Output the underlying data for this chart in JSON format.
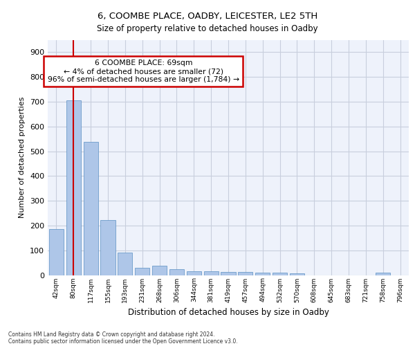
{
  "title_line1": "6, COOMBE PLACE, OADBY, LEICESTER, LE2 5TH",
  "title_line2": "Size of property relative to detached houses in Oadby",
  "xlabel": "Distribution of detached houses by size in Oadby",
  "ylabel": "Number of detached properties",
  "categories": [
    "42sqm",
    "80sqm",
    "117sqm",
    "155sqm",
    "193sqm",
    "231sqm",
    "268sqm",
    "306sqm",
    "344sqm",
    "381sqm",
    "419sqm",
    "457sqm",
    "494sqm",
    "532sqm",
    "570sqm",
    "608sqm",
    "645sqm",
    "683sqm",
    "721sqm",
    "758sqm",
    "796sqm"
  ],
  "values": [
    186,
    706,
    538,
    221,
    91,
    28,
    38,
    25,
    15,
    14,
    13,
    13,
    10,
    10,
    8,
    0,
    0,
    0,
    0,
    10,
    0
  ],
  "bar_color": "#aec6e8",
  "bar_edge_color": "#5a8fc2",
  "vline_x": 0.97,
  "annotation_text": "6 COOMBE PLACE: 69sqm\n← 4% of detached houses are smaller (72)\n96% of semi-detached houses are larger (1,784) →",
  "annotation_box_color": "#ffffff",
  "annotation_box_edge_color": "#cc0000",
  "vline_color": "#cc0000",
  "ylim": [
    0,
    950
  ],
  "yticks": [
    0,
    100,
    200,
    300,
    400,
    500,
    600,
    700,
    800,
    900
  ],
  "footer_line1": "Contains HM Land Registry data © Crown copyright and database right 2024.",
  "footer_line2": "Contains public sector information licensed under the Open Government Licence v3.0.",
  "bg_color": "#eef2fb",
  "grid_color": "#c8cedd"
}
